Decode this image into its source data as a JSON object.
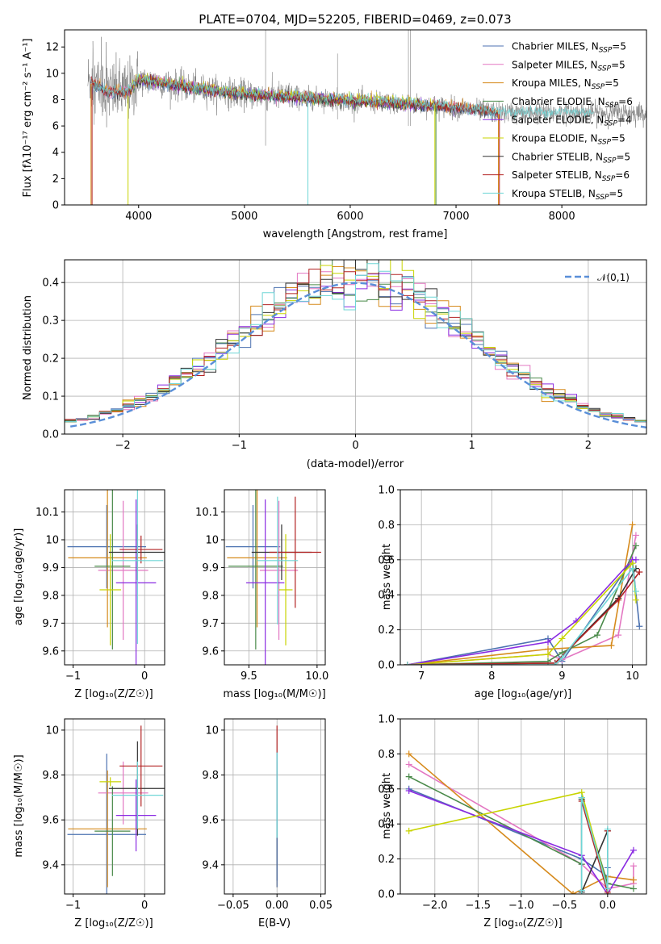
{
  "chart_data": [
    {
      "type": "line",
      "title": "PLATE=0704, MJD=52205, FIBERID=0469, z=0.073",
      "xlabel": "wavelength [Angstrom, rest frame]",
      "ylabel": "Flux [fλ10⁻¹⁷ erg cm⁻² s⁻¹ A⁻¹]",
      "xlim": [
        3300,
        8800
      ],
      "ylim": [
        0,
        13.3
      ],
      "xticks": [
        4000,
        5000,
        6000,
        7000,
        8000
      ],
      "yticks": [
        0,
        2,
        4,
        6,
        8,
        10,
        12
      ],
      "legend_position": "top-right",
      "observed_color": "#808080",
      "continuum": {
        "x": [
          3550,
          3700,
          3900,
          4000,
          4200,
          4500,
          5000,
          5500,
          6000,
          6500,
          7000,
          7400
        ],
        "y": [
          9.4,
          8.6,
          8.6,
          9.5,
          9.3,
          8.9,
          8.4,
          8.2,
          7.9,
          7.7,
          7.4,
          7.0
        ]
      },
      "series": [
        {
          "name": "Chabrier MILES, N_SSP=5",
          "color": "#4c72b0",
          "x_range": [
            3550,
            7400
          ]
        },
        {
          "name": "Salpeter MILES, N_SSP=5",
          "color": "#e377c2",
          "x_range": [
            3550,
            7400
          ]
        },
        {
          "name": "Kroupa MILES, N_SSP=5",
          "color": "#d68a1c",
          "x_range": [
            3550,
            7400
          ]
        },
        {
          "name": "Chabrier ELODIE, N_SSP=6",
          "color": "#4a8a4a",
          "x_range": [
            3900,
            6800
          ]
        },
        {
          "name": "Salpeter ELODIE, N_SSP=4",
          "color": "#8a2be2",
          "x_range": [
            3900,
            6800
          ]
        },
        {
          "name": "Kroupa ELODIE, N_SSP=5",
          "color": "#c8d400",
          "x_range": [
            3900,
            6800
          ]
        },
        {
          "name": "Chabrier STELIB, N_SSP=5",
          "color": "#333333",
          "x_range": [
            3550,
            7400
          ]
        },
        {
          "name": "Salpeter STELIB, N_SSP=6",
          "color": "#b22222",
          "x_range": [
            3550,
            7400
          ]
        },
        {
          "name": "Kroupa STELIB, N_SSP=5",
          "color": "#6fd6d6",
          "x_range": [
            3550,
            8300
          ]
        }
      ]
    },
    {
      "type": "histogram",
      "xlabel": "(data-model)/error",
      "ylabel": "Normed distribution",
      "xlim": [
        -2.5,
        2.5
      ],
      "ylim": [
        0,
        0.46
      ],
      "xticks": [
        -2,
        -1,
        0,
        1,
        2
      ],
      "yticks": [
        0.0,
        0.1,
        0.2,
        0.3,
        0.4
      ],
      "legend_position": "top-right",
      "reference_curve": {
        "name": "𝒩(0,1)",
        "color": "#5a8fd8"
      },
      "bin_width": 0.1,
      "series_colors": [
        "#4c72b0",
        "#e377c2",
        "#d68a1c",
        "#4a8a4a",
        "#8a2be2",
        "#c8d400",
        "#333333",
        "#b22222",
        "#6fd6d6"
      ]
    },
    {
      "type": "scatter",
      "panel": "age vs Z",
      "xlabel": "Z [log₁₀(Z/Z☉)]",
      "ylabel": "age  [log₁₀(age/yr)]",
      "xlim": [
        -1.12,
        0.28
      ],
      "ylim": [
        9.55,
        10.18
      ],
      "xticks": [
        -1,
        0
      ],
      "xtick_labels": [
        "−1",
        "0"
      ],
      "yticks": [
        9.6,
        9.7,
        9.8,
        9.9,
        10.0,
        10.1
      ],
      "points": [
        {
          "color": "#4c72b0",
          "x": -0.53,
          "xerr": 0.55,
          "y": 9.975,
          "yerr": 0.15
        },
        {
          "color": "#e377c2",
          "x": -0.3,
          "xerr": 0.35,
          "y": 9.89,
          "yerr": 0.25
        },
        {
          "color": "#d68a1c",
          "x": -0.52,
          "xerr": 0.55,
          "y": 9.935,
          "yerr": 0.25
        },
        {
          "color": "#4a8a4a",
          "x": -0.45,
          "xerr": 0.25,
          "y": 9.905,
          "yerr": 0.3
        },
        {
          "color": "#8a2be2",
          "x": -0.12,
          "xerr": 0.28,
          "y": 9.845,
          "yerr": 0.3
        },
        {
          "color": "#c8d400",
          "x": -0.48,
          "xerr": 0.15,
          "y": 9.82,
          "yerr": 0.2
        },
        {
          "color": "#333333",
          "x": -0.1,
          "xerr": 0.4,
          "y": 9.955,
          "yerr": 0.1
        },
        {
          "color": "#b22222",
          "x": -0.05,
          "xerr": 0.3,
          "y": 9.965,
          "yerr": 0.05
        },
        {
          "color": "#6fd6d6",
          "x": -0.1,
          "xerr": 0.36,
          "y": 9.925,
          "yerr": 0.3
        }
      ]
    },
    {
      "type": "scatter",
      "panel": "age vs mass",
      "xlabel": "mass [log₁₀(M/M☉)]",
      "ylabel": "",
      "xlim": [
        9.32,
        10.06
      ],
      "ylim": [
        9.55,
        10.18
      ],
      "xticks": [
        9.5,
        10.0
      ],
      "yticks": [
        9.6,
        9.7,
        9.8,
        9.9,
        10.0,
        10.1
      ],
      "points": [
        {
          "color": "#4c72b0",
          "x": 9.53,
          "xerr": 0.2,
          "y": 9.975,
          "yerr": 0.15
        },
        {
          "color": "#e377c2",
          "x": 9.72,
          "xerr": 0.14,
          "y": 9.89,
          "yerr": 0.25
        },
        {
          "color": "#d68a1c",
          "x": 9.56,
          "xerr": 0.22,
          "y": 9.935,
          "yerr": 0.25
        },
        {
          "color": "#4a8a4a",
          "x": 9.55,
          "xerr": 0.2,
          "y": 9.905,
          "yerr": 0.3
        },
        {
          "color": "#8a2be2",
          "x": 9.62,
          "xerr": 0.14,
          "y": 9.845,
          "yerr": 0.3
        },
        {
          "color": "#c8d400",
          "x": 9.77,
          "xerr": 0.05,
          "y": 9.82,
          "yerr": 0.2
        },
        {
          "color": "#333333",
          "x": 9.74,
          "xerr": 0.22,
          "y": 9.955,
          "yerr": 0.1
        },
        {
          "color": "#b22222",
          "x": 9.84,
          "xerr": 0.19,
          "y": 9.955,
          "yerr": 0.2
        },
        {
          "color": "#6fd6d6",
          "x": 9.71,
          "xerr": 0.15,
          "y": 9.925,
          "yerr": 0.23
        }
      ]
    },
    {
      "type": "line",
      "panel": "mass weight vs age",
      "xlabel": "age  [log₁₀(age/yr)]",
      "ylabel": "mass weight",
      "xlim": [
        6.7,
        10.2
      ],
      "ylim": [
        0,
        1
      ],
      "xticks": [
        7,
        8,
        9,
        10
      ],
      "yticks": [
        0.0,
        0.2,
        0.4,
        0.6,
        0.8,
        1.0
      ],
      "series": [
        {
          "color": "#4c72b0",
          "x": [
            6.8,
            8.8,
            9.0,
            10.0,
            10.1
          ],
          "y": [
            0.0,
            0.15,
            0.02,
            0.6,
            0.22
          ]
        },
        {
          "color": "#e377c2",
          "x": [
            6.8,
            8.8,
            9.0,
            9.8,
            10.05
          ],
          "y": [
            0.0,
            0.06,
            0.03,
            0.17,
            0.74
          ]
        },
        {
          "color": "#d68a1c",
          "x": [
            6.8,
            8.8,
            9.7,
            10.0
          ],
          "y": [
            0.0,
            0.09,
            0.11,
            0.8
          ]
        },
        {
          "color": "#4a8a4a",
          "x": [
            6.8,
            8.8,
            9.0,
            9.5,
            10.05
          ],
          "y": [
            0.0,
            0.02,
            0.07,
            0.17,
            0.68
          ]
        },
        {
          "color": "#8a2be2",
          "x": [
            6.8,
            8.8,
            9.2,
            10.0,
            10.05
          ],
          "y": [
            0.0,
            0.13,
            0.25,
            0.6,
            0.6
          ]
        },
        {
          "color": "#c8d400",
          "x": [
            6.8,
            8.8,
            9.0,
            10.0,
            10.05
          ],
          "y": [
            0.0,
            0.06,
            0.15,
            0.58,
            0.37
          ]
        },
        {
          "color": "#333333",
          "x": [
            6.8,
            8.9,
            9.8,
            10.05
          ],
          "y": [
            0.0,
            0.01,
            0.38,
            0.55
          ]
        },
        {
          "color": "#b22222",
          "x": [
            6.8,
            8.9,
            9.8,
            10.1
          ],
          "y": [
            0.0,
            0.01,
            0.37,
            0.53
          ]
        },
        {
          "color": "#6fd6d6",
          "x": [
            6.8,
            8.9,
            9.0,
            10.0,
            10.05
          ],
          "y": [
            0.0,
            0.0,
            0.04,
            0.55,
            0.42
          ]
        }
      ]
    },
    {
      "type": "scatter",
      "panel": "mass vs Z",
      "xlabel": "Z [log₁₀(Z/Z☉)]",
      "ylabel": "mass [log₁₀(M/M☉)]",
      "xlim": [
        -1.12,
        0.28
      ],
      "ylim": [
        9.27,
        10.05
      ],
      "xticks": [
        -1,
        0
      ],
      "xtick_labels": [
        "−1",
        "0"
      ],
      "yticks": [
        9.4,
        9.6,
        9.8,
        10.0
      ],
      "points": [
        {
          "color": "#4c72b0",
          "x": -0.53,
          "xerr": 0.55,
          "y": 9.535,
          "yerr": 0.36
        },
        {
          "color": "#e377c2",
          "x": -0.3,
          "xerr": 0.35,
          "y": 9.72,
          "yerr": 0.14
        },
        {
          "color": "#d68a1c",
          "x": -0.52,
          "xerr": 0.55,
          "y": 9.56,
          "yerr": 0.26
        },
        {
          "color": "#4a8a4a",
          "x": -0.45,
          "xerr": 0.25,
          "y": 9.55,
          "yerr": 0.2
        },
        {
          "color": "#8a2be2",
          "x": -0.12,
          "xerr": 0.28,
          "y": 9.62,
          "yerr": 0.16
        },
        {
          "color": "#c8d400",
          "x": -0.48,
          "xerr": 0.15,
          "y": 9.77,
          "yerr": 0.02
        },
        {
          "color": "#333333",
          "x": -0.1,
          "xerr": 0.4,
          "y": 9.74,
          "yerr": 0.21
        },
        {
          "color": "#b22222",
          "x": -0.05,
          "xerr": 0.3,
          "y": 9.84,
          "yerr": 0.18
        },
        {
          "color": "#6fd6d6",
          "x": -0.1,
          "xerr": 0.36,
          "y": 9.71,
          "yerr": 0.15
        }
      ]
    },
    {
      "type": "scatter",
      "panel": "mass vs E(B-V)",
      "xlabel": "E(B-V)",
      "ylabel": "",
      "xlim": [
        -0.06,
        0.055
      ],
      "ylim": [
        9.27,
        10.05
      ],
      "xticks": [
        -0.05,
        0.0,
        0.05
      ],
      "xtick_labels": [
        "−0.05",
        "0.00",
        "0.05"
      ],
      "yticks": [
        9.4,
        9.6,
        9.8,
        10.0
      ],
      "points": [
        {
          "color": "#d68a1c",
          "x": 0,
          "y": 9.56,
          "yerr": 0.26
        },
        {
          "color": "#e377c2",
          "x": 0,
          "y": 9.72,
          "yerr": 0.14
        },
        {
          "color": "#333333",
          "x": 0,
          "y": 9.5,
          "yerr": 0.17
        },
        {
          "color": "#b22222",
          "x": 0,
          "y": 9.84,
          "yerr": 0.18
        },
        {
          "color": "#4c72b0",
          "x": 0,
          "y": 9.6,
          "yerr": 0.3
        },
        {
          "color": "#6fd6d6",
          "x": 0,
          "y": 9.71,
          "yerr": 0.19
        }
      ]
    },
    {
      "type": "line",
      "panel": "mass weight vs Z",
      "xlabel": "Z [log₁₀(Z/Z☉)]",
      "ylabel": "mass weight",
      "xlim": [
        -2.4,
        0.45
      ],
      "ylim": [
        0,
        1
      ],
      "xticks": [
        -2.0,
        -1.5,
        -1.0,
        -0.5,
        0.0
      ],
      "xtick_labels": [
        "−2.0",
        "−1.5",
        "−1.0",
        "−0.5",
        "0.0"
      ],
      "yticks": [
        0.0,
        0.2,
        0.4,
        0.6,
        0.8,
        1.0
      ],
      "series": [
        {
          "color": "#4c72b0",
          "x": [
            -2.3,
            -0.3,
            0.0,
            0.0
          ],
          "y": [
            0.6,
            0.2,
            0.1,
            0.15
          ]
        },
        {
          "color": "#e377c2",
          "x": [
            -2.3,
            -0.3,
            0.0,
            0.3,
            0.3
          ],
          "y": [
            0.74,
            0.17,
            0.03,
            0.06,
            0.16
          ]
        },
        {
          "color": "#d68a1c",
          "x": [
            -2.3,
            -0.4,
            0.0,
            0.3
          ],
          "y": [
            0.8,
            0.0,
            0.1,
            0.08
          ]
        },
        {
          "color": "#4a8a4a",
          "x": [
            -2.3,
            -0.3,
            -0.3,
            0.0,
            0.3
          ],
          "y": [
            0.67,
            0.17,
            0.55,
            0.06,
            0.03
          ]
        },
        {
          "color": "#8a2be2",
          "x": [
            -2.3,
            -0.3,
            0.0,
            0.3
          ],
          "y": [
            0.59,
            0.22,
            0.0,
            0.25
          ]
        },
        {
          "color": "#c8d400",
          "x": [
            -2.3,
            -0.3,
            0.0,
            0.0
          ],
          "y": [
            0.36,
            0.58,
            0.03,
            0.0
          ]
        },
        {
          "color": "#333333",
          "x": [
            -0.3,
            -0.3,
            0.0
          ],
          "y": [
            0.54,
            0.01,
            0.36
          ]
        },
        {
          "color": "#b22222",
          "x": [
            -0.3,
            0.0,
            0.0
          ],
          "y": [
            0.53,
            0.01,
            0.36
          ]
        },
        {
          "color": "#6fd6d6",
          "x": [
            -0.3,
            -0.3,
            0.0,
            0.0
          ],
          "y": [
            0.02,
            0.55,
            0.03,
            0.37
          ]
        }
      ]
    }
  ]
}
